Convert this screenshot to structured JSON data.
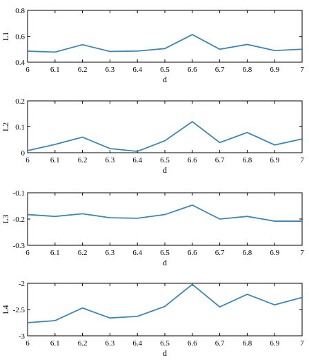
{
  "figure": {
    "line_color": "#3a86b6",
    "axis_color": "#000000"
  },
  "chart_data": [
    {
      "type": "line",
      "title": "",
      "xlabel": "d",
      "ylabel": "L1",
      "xlim": [
        6,
        7
      ],
      "ylim": [
        0.4,
        0.8
      ],
      "x_ticks": [
        6,
        6.1,
        6.2,
        6.3,
        6.4,
        6.5,
        6.6,
        6.7,
        6.8,
        6.9,
        7
      ],
      "x_tick_labels": [
        "6",
        "6.1",
        "6.2",
        "6.3",
        "6.4",
        "6.5",
        "6.6",
        "6.7",
        "6.8",
        "6.9",
        "7"
      ],
      "y_ticks": [
        0.4,
        0.6,
        0.8
      ],
      "y_tick_labels": [
        "0.4",
        "0.6",
        "0.8"
      ],
      "grid": false,
      "series": [
        {
          "x": [
            6,
            6.1,
            6.2,
            6.3,
            6.4,
            6.5,
            6.6,
            6.7,
            6.8,
            6.9,
            7
          ],
          "values": [
            0.485,
            0.478,
            0.535,
            0.483,
            0.486,
            0.505,
            0.613,
            0.5,
            0.537,
            0.49,
            0.5
          ]
        }
      ]
    },
    {
      "type": "line",
      "title": "",
      "xlabel": "d",
      "ylabel": "L2",
      "xlim": [
        6,
        7
      ],
      "ylim": [
        0,
        0.2
      ],
      "x_ticks": [
        6,
        6.1,
        6.2,
        6.3,
        6.4,
        6.5,
        6.6,
        6.7,
        6.8,
        6.9,
        7
      ],
      "x_tick_labels": [
        "6",
        "6.1",
        "6.2",
        "6.3",
        "6.4",
        "6.5",
        "6.6",
        "6.7",
        "6.8",
        "6.9",
        "7"
      ],
      "y_ticks": [
        0,
        0.1,
        0.2
      ],
      "y_tick_labels": [
        "0",
        "0.1",
        "0.2"
      ],
      "grid": false,
      "series": [
        {
          "x": [
            6,
            6.1,
            6.2,
            6.3,
            6.4,
            6.5,
            6.6,
            6.7,
            6.8,
            6.9,
            7
          ],
          "values": [
            0.008,
            0.032,
            0.06,
            0.016,
            0.005,
            0.046,
            0.12,
            0.039,
            0.078,
            0.03,
            0.053
          ]
        }
      ]
    },
    {
      "type": "line",
      "title": "",
      "xlabel": "d",
      "ylabel": "L3",
      "xlim": [
        6,
        7
      ],
      "ylim": [
        -0.3,
        -0.1
      ],
      "x_ticks": [
        6,
        6.1,
        6.2,
        6.3,
        6.4,
        6.5,
        6.6,
        6.7,
        6.8,
        6.9,
        7
      ],
      "x_tick_labels": [
        "6",
        "6.1",
        "6.2",
        "6.3",
        "6.4",
        "6.5",
        "6.6",
        "6.7",
        "6.8",
        "6.9",
        "7"
      ],
      "y_ticks": [
        -0.3,
        -0.2,
        -0.1
      ],
      "y_tick_labels": [
        "-0.3",
        "-0.2",
        "-0.1"
      ],
      "grid": false,
      "series": [
        {
          "x": [
            6,
            6.1,
            6.2,
            6.3,
            6.4,
            6.5,
            6.6,
            6.7,
            6.8,
            6.9,
            7
          ],
          "values": [
            -0.183,
            -0.19,
            -0.18,
            -0.195,
            -0.197,
            -0.183,
            -0.147,
            -0.2,
            -0.19,
            -0.208,
            -0.208
          ]
        }
      ]
    },
    {
      "type": "line",
      "title": "",
      "xlabel": "d",
      "ylabel": "L4",
      "xlim": [
        6,
        7
      ],
      "ylim": [
        -3,
        -2
      ],
      "x_ticks": [
        6,
        6.1,
        6.2,
        6.3,
        6.4,
        6.5,
        6.6,
        6.7,
        6.8,
        6.9,
        7
      ],
      "x_tick_labels": [
        "6",
        "6.1",
        "6.2",
        "6.3",
        "6.4",
        "6.5",
        "6.6",
        "6.7",
        "6.8",
        "6.9",
        "7"
      ],
      "y_ticks": [
        -3,
        -2.5,
        -2
      ],
      "y_tick_labels": [
        "-3",
        "-2.5",
        "-2"
      ],
      "grid": false,
      "series": [
        {
          "x": [
            6,
            6.1,
            6.2,
            6.3,
            6.4,
            6.5,
            6.6,
            6.7,
            6.8,
            6.9,
            7
          ],
          "values": [
            -2.75,
            -2.71,
            -2.47,
            -2.66,
            -2.63,
            -2.44,
            -2.02,
            -2.45,
            -2.21,
            -2.41,
            -2.27
          ]
        }
      ]
    }
  ]
}
